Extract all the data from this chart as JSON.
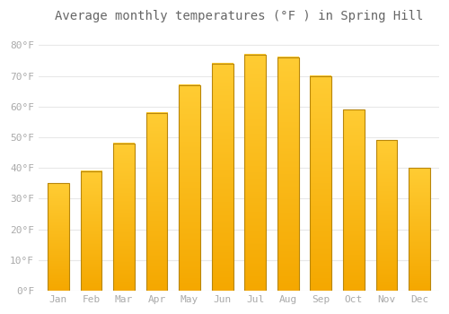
{
  "title": "Average monthly temperatures (°F ) in Spring Hill",
  "months": [
    "Jan",
    "Feb",
    "Mar",
    "Apr",
    "May",
    "Jun",
    "Jul",
    "Aug",
    "Sep",
    "Oct",
    "Nov",
    "Dec"
  ],
  "values": [
    35,
    39,
    48,
    58,
    67,
    74,
    77,
    76,
    70,
    59,
    49,
    40
  ],
  "bar_color_top": "#FFCC33",
  "bar_color_bottom": "#F5A800",
  "bar_edge_color": "#B8860B",
  "background_color": "#FFFFFF",
  "grid_color": "#E8E8E8",
  "ylim": [
    0,
    85
  ],
  "yticks": [
    0,
    10,
    20,
    30,
    40,
    50,
    60,
    70,
    80
  ],
  "ytick_labels": [
    "0°F",
    "10°F",
    "20°F",
    "30°F",
    "40°F",
    "50°F",
    "60°F",
    "70°F",
    "80°F"
  ],
  "title_fontsize": 10,
  "tick_fontsize": 8,
  "tick_color": "#AAAAAA",
  "title_color": "#666666",
  "bar_width": 0.65
}
